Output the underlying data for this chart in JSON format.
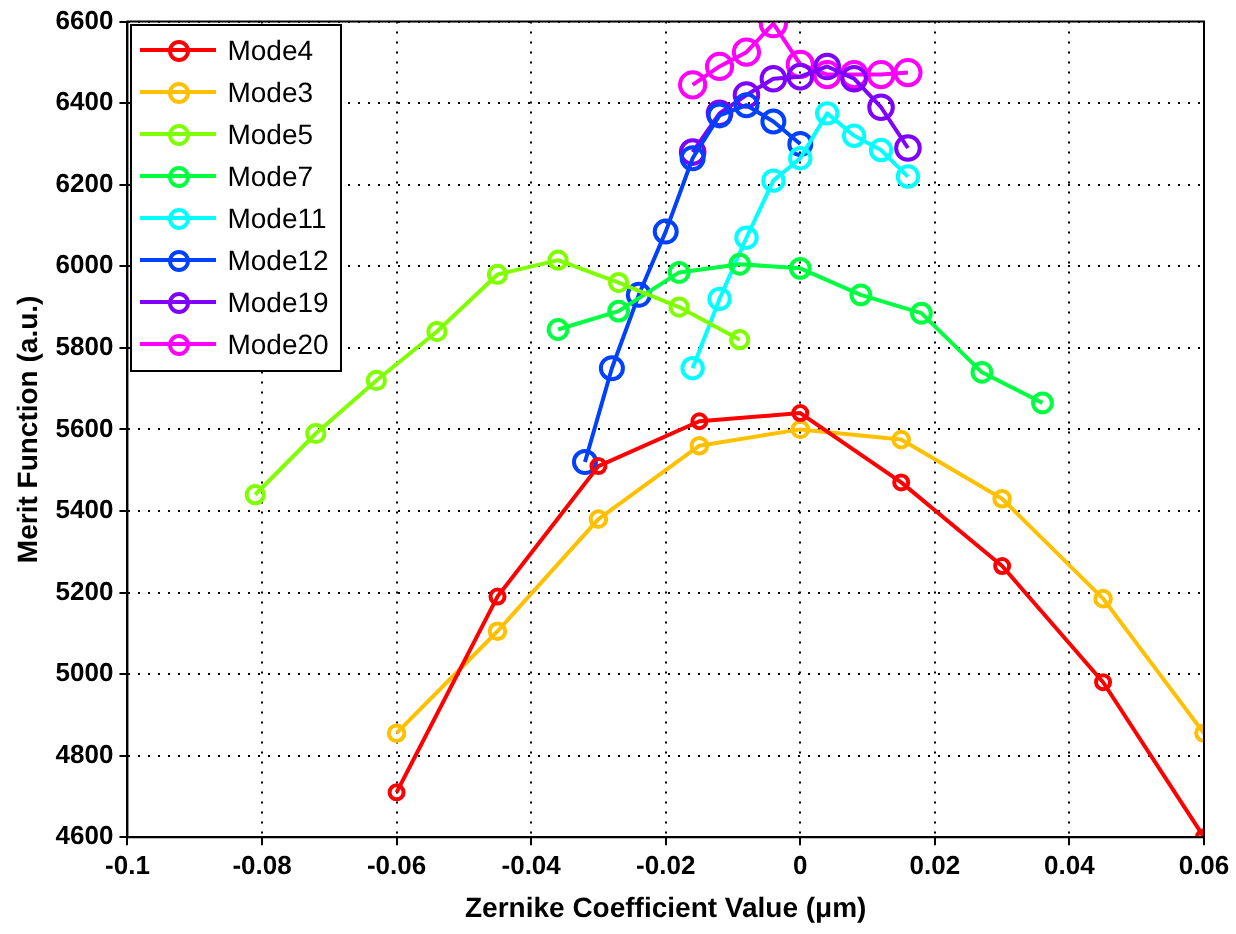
{
  "chart_data": {
    "type": "line",
    "xlabel": "Zernike Coefficient Value (μm)",
    "ylabel": "Merit Function (a.u.)",
    "xlim": [
      -0.1,
      0.06
    ],
    "xticks": [
      -0.1,
      -0.08,
      -0.06,
      -0.04,
      -0.02,
      0,
      0.02,
      0.04,
      0.06
    ],
    "ylim": [
      4600,
      6600
    ],
    "yticks": [
      4600,
      4800,
      5000,
      5200,
      5400,
      5600,
      5800,
      6000,
      6200,
      6400,
      6600
    ],
    "grid": true,
    "legend": "top left",
    "marker": "circle",
    "line_style": "solid",
    "series": [
      {
        "name": "Mode4",
        "color": "#ff0000",
        "x": [
          -0.06,
          -0.045,
          -0.03,
          -0.015,
          0,
          0.015,
          0.03,
          0.045,
          0.06
        ],
        "values": [
          4710,
          5190,
          5510,
          5620,
          5640,
          5470,
          5265,
          4980,
          4600
        ]
      },
      {
        "name": "Mode3",
        "color": "#ffc000",
        "x": [
          -0.06,
          -0.045,
          -0.03,
          -0.015,
          0,
          0.015,
          0.03,
          0.045,
          0.06
        ],
        "values": [
          4855,
          5105,
          5380,
          5560,
          5600,
          5575,
          5430,
          5185,
          4855
        ]
      },
      {
        "name": "Mode5",
        "color": "#80ff00",
        "x": [
          -0.081,
          -0.072,
          -0.063,
          -0.054,
          -0.045,
          -0.036,
          -0.027,
          -0.018,
          -0.009
        ],
        "values": [
          5440,
          5590,
          5720,
          5840,
          5980,
          6015,
          5960,
          5900,
          5820
        ]
      },
      {
        "name": "Mode7",
        "color": "#00ff40",
        "x": [
          -0.036,
          -0.027,
          -0.018,
          -0.009,
          0,
          0.009,
          0.018,
          0.027,
          0.036
        ],
        "values": [
          5845,
          5890,
          5985,
          6005,
          5995,
          5930,
          5885,
          5740,
          5665
        ]
      },
      {
        "name": "Mode11",
        "color": "#00ffff",
        "x": [
          -0.016,
          -0.012,
          -0.008,
          -0.004,
          0,
          0.004,
          0.008,
          0.012,
          0.016
        ],
        "values": [
          5750,
          5920,
          6070,
          6210,
          6265,
          6375,
          6320,
          6285,
          6220
        ]
      },
      {
        "name": "Mode12",
        "color": "#0040ff",
        "x": [
          -0.032,
          -0.028,
          -0.024,
          -0.02,
          -0.016,
          -0.012,
          -0.008,
          -0.004,
          0
        ],
        "values": [
          5520,
          5750,
          5930,
          6085,
          6265,
          6370,
          6395,
          6355,
          6300
        ]
      },
      {
        "name": "Mode19",
        "color": "#8000ff",
        "x": [
          -0.016,
          -0.012,
          -0.008,
          -0.004,
          0,
          0.004,
          0.008,
          0.012,
          0.016
        ],
        "values": [
          6280,
          6375,
          6420,
          6460,
          6465,
          6490,
          6460,
          6390,
          6290
        ]
      },
      {
        "name": "Mode20",
        "color": "#ff00ff",
        "x": [
          -0.016,
          -0.012,
          -0.008,
          -0.004,
          0,
          0.004,
          0.008,
          0.012,
          0.016
        ],
        "values": [
          6445,
          6490,
          6525,
          6595,
          6495,
          6470,
          6470,
          6470,
          6475
        ]
      }
    ]
  }
}
